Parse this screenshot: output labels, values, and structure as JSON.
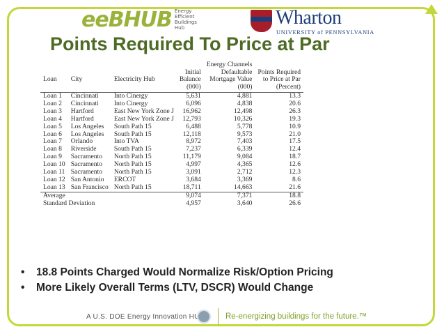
{
  "header": {
    "eeb_logo": "eeBHUB",
    "eeb_sub": [
      "Energy",
      "Efficient",
      "Buildings",
      "Hub"
    ],
    "wharton_name": "Wharton",
    "wharton_sub": "UNIVERSITY of PENNSYLVANIA"
  },
  "slide": {
    "title": "Points Required To Price at Par"
  },
  "table": {
    "headers": {
      "loan": "Loan",
      "city": "City",
      "hub": "Electricity Hub",
      "balance": [
        "Initial",
        "Balance",
        "(000)"
      ],
      "mortgage": [
        "Energy Channels",
        "Defaultable",
        "Mortgage Value",
        "(000)"
      ],
      "points": [
        "Points Required",
        "to Price at Par",
        "(Percent)"
      ]
    },
    "rows": [
      {
        "loan": "Loan 1",
        "city": "Cincinnati",
        "hub": "Into Cinergy",
        "balance": "5,631",
        "mortgage": "4,881",
        "points": "13.3"
      },
      {
        "loan": "Loan 2",
        "city": "Cincinnati",
        "hub": "Into Cinergy",
        "balance": "6,096",
        "mortgage": "4,838",
        "points": "20.6"
      },
      {
        "loan": "Loan 3",
        "city": "Hartford",
        "hub": "East New York Zone J",
        "balance": "16,962",
        "mortgage": "12,498",
        "points": "26.3"
      },
      {
        "loan": "Loan 4",
        "city": "Hartford",
        "hub": "East New York Zone J",
        "balance": "12,793",
        "mortgage": "10,326",
        "points": "19.3"
      },
      {
        "loan": "Loan 5",
        "city": "Los Angeles",
        "hub": "South Path 15",
        "balance": "6,488",
        "mortgage": "5,778",
        "points": "10.9"
      },
      {
        "loan": "Loan 6",
        "city": "Los Angeles",
        "hub": "South Path 15",
        "balance": "12,118",
        "mortgage": "9,573",
        "points": "21.0"
      },
      {
        "loan": "Loan 7",
        "city": "Orlando",
        "hub": "Into TVA",
        "balance": "8,972",
        "mortgage": "7,403",
        "points": "17.5"
      },
      {
        "loan": "Loan 8",
        "city": "Riverside",
        "hub": "South Path 15",
        "balance": "7,237",
        "mortgage": "6,339",
        "points": "12.4"
      },
      {
        "loan": "Loan 9",
        "city": "Sacramento",
        "hub": "North Path 15",
        "balance": "11,179",
        "mortgage": "9,084",
        "points": "18.7"
      },
      {
        "loan": "Loan 10",
        "city": "Sacramento",
        "hub": "North Path 15",
        "balance": "4,997",
        "mortgage": "4,365",
        "points": "12.6"
      },
      {
        "loan": "Loan 11",
        "city": "Sacramento",
        "hub": "North Path 15",
        "balance": "3,091",
        "mortgage": "2,712",
        "points": "12.3"
      },
      {
        "loan": "Loan 12",
        "city": "San Antonio",
        "hub": "ERCOT",
        "balance": "3,684",
        "mortgage": "3,369",
        "points": "8.6"
      },
      {
        "loan": "Loan 13",
        "city": "San Francisco",
        "hub": "North Path 15",
        "balance": "18,711",
        "mortgage": "14,663",
        "points": "21.6"
      }
    ],
    "summary": [
      {
        "label": "Average",
        "balance": "9,074",
        "mortgage": "7,371",
        "points": "18.8"
      },
      {
        "label": "Standard Deviation",
        "balance": "4,957",
        "mortgage": "3,640",
        "points": "26.6"
      }
    ]
  },
  "bullets": [
    "18.8 Points Charged Would Normalize Risk/Option Pricing",
    "More Likely Overall Terms (LTV, DSCR) Would Change"
  ],
  "footer": {
    "left": "A U.S. DOE Energy Innovation HUB",
    "right": "Re-energizing buildings for the future.™"
  },
  "colors": {
    "frame_accent": "#c3d838",
    "title_green": "#4e6b26",
    "wharton_blue": "#1d3d7a",
    "penn_red": "#a71e2b",
    "footer_green": "#7fa02a"
  }
}
